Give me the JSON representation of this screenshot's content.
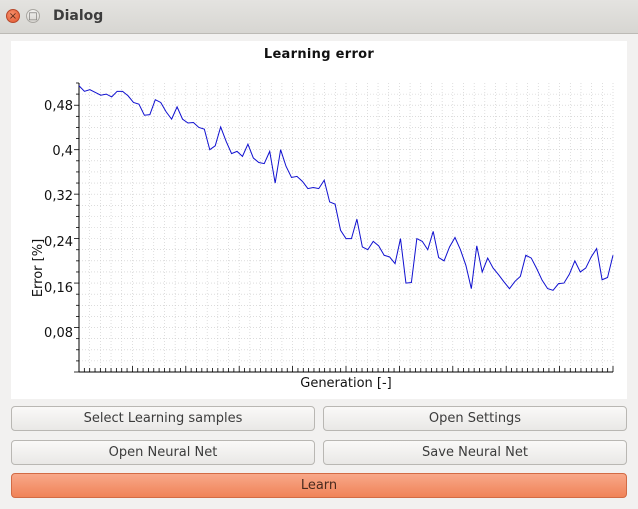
{
  "window": {
    "title": "Dialog",
    "close_glyph": "×",
    "max_glyph": "□"
  },
  "colors": {
    "line": "#1010d0",
    "accent": "#f08358"
  },
  "buttons": {
    "select_samples": "Select Learning samples",
    "open_settings": "Open Settings",
    "open_net": "Open Neural Net",
    "save_net": "Save Neural Net",
    "learn": "Learn"
  },
  "chart_data": {
    "type": "line",
    "title": "Learning error",
    "xlabel": "Generation [-]",
    "ylabel": "Error [%]",
    "ylim": [
      0,
      0.52
    ],
    "xlim": [
      0,
      100
    ],
    "y_ticks": [
      0.08,
      0.16,
      0.24,
      0.32,
      0.4,
      0.48
    ],
    "y_tick_labels": [
      "0,08",
      "0,16",
      "0,24",
      "0,32",
      "0,4",
      "0,48"
    ],
    "grid": true,
    "series": [
      {
        "values": [
          0.515,
          0.505,
          0.508,
          0.503,
          0.498,
          0.5,
          0.495,
          0.505,
          0.505,
          0.497,
          0.485,
          0.482,
          0.462,
          0.463,
          0.49,
          0.485,
          0.468,
          0.455,
          0.477,
          0.455,
          0.448,
          0.449,
          0.44,
          0.437,
          0.4,
          0.407,
          0.441,
          0.415,
          0.393,
          0.397,
          0.388,
          0.41,
          0.385,
          0.377,
          0.375,
          0.397,
          0.34,
          0.4,
          0.37,
          0.35,
          0.352,
          0.343,
          0.33,
          0.332,
          0.33,
          0.345,
          0.306,
          0.302,
          0.255,
          0.24,
          0.24,
          0.275,
          0.225,
          0.22,
          0.235,
          0.227,
          0.21,
          0.207,
          0.195,
          0.24,
          0.16,
          0.161,
          0.24,
          0.235,
          0.22,
          0.253,
          0.206,
          0.2,
          0.225,
          0.242,
          0.22,
          0.192,
          0.15,
          0.227,
          0.18,
          0.205,
          0.187,
          0.175,
          0.162,
          0.15,
          0.163,
          0.172,
          0.21,
          0.205,
          0.186,
          0.165,
          0.15,
          0.147,
          0.159,
          0.16,
          0.176,
          0.2,
          0.18,
          0.187,
          0.207,
          0.222,
          0.166,
          0.17,
          0.21
        ]
      }
    ]
  }
}
